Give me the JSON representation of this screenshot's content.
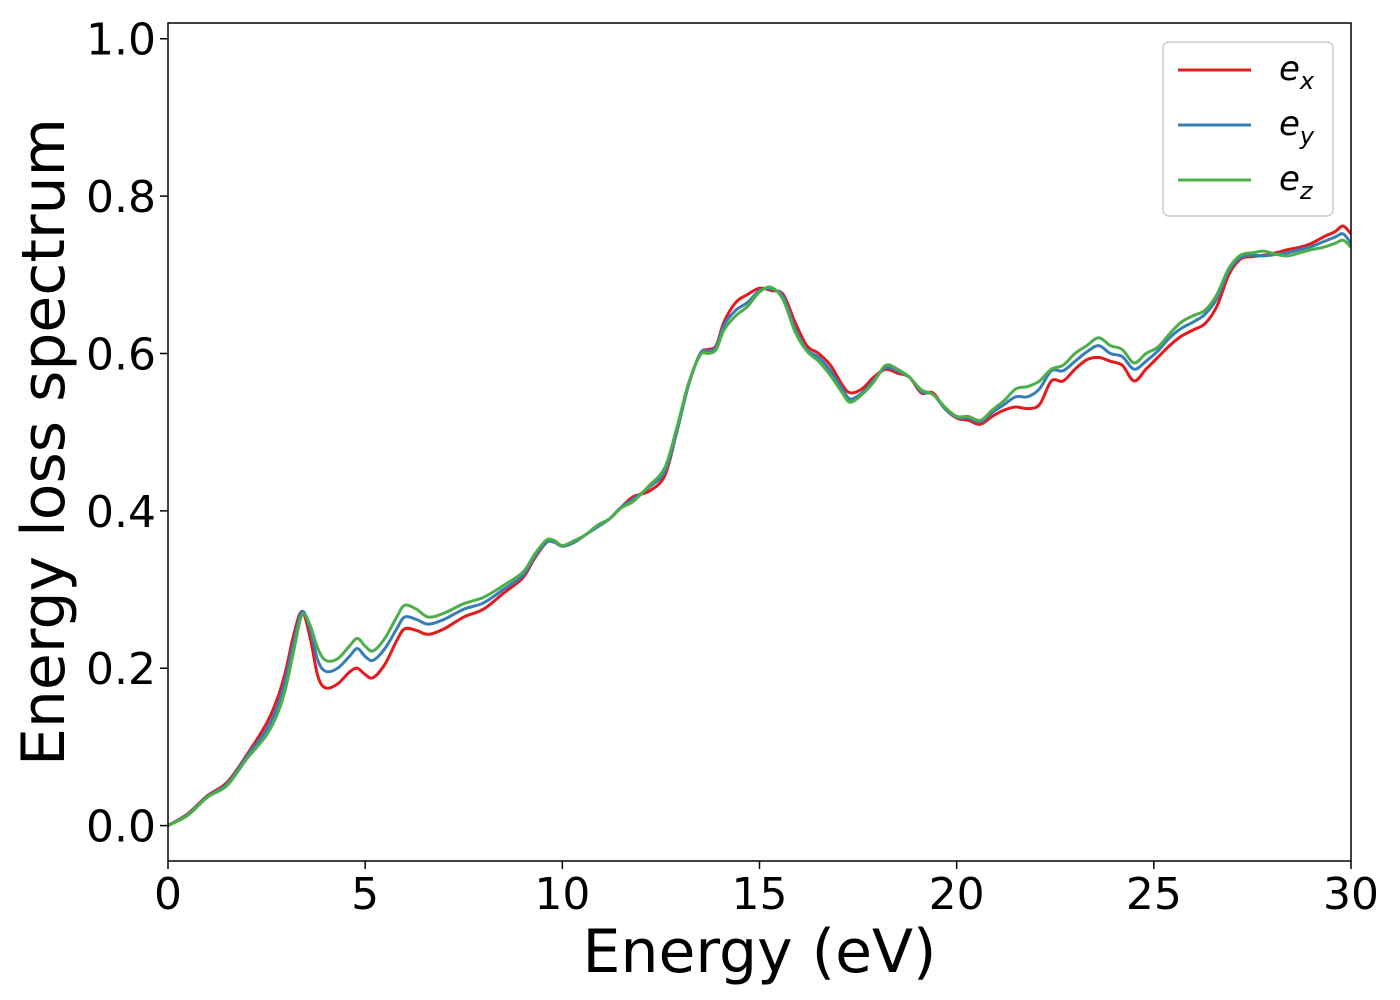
{
  "chart_data": {
    "type": "line",
    "title": "",
    "xlabel": "Energy (eV)",
    "ylabel": "Energy loss spectrum",
    "xlim": [
      0,
      30
    ],
    "ylim": [
      -0.045,
      1.02
    ],
    "xticks": [
      0,
      5,
      10,
      15,
      20,
      25,
      30
    ],
    "xtick_labels": [
      "0",
      "5",
      "10",
      "15",
      "20",
      "25",
      "30"
    ],
    "yticks": [
      0.0,
      0.2,
      0.4,
      0.6,
      0.8,
      1.0
    ],
    "ytick_labels": [
      "0.0",
      "0.2",
      "0.4",
      "0.6",
      "0.8",
      "1.0"
    ],
    "grid": false,
    "legend_position": "top-right",
    "series": [
      {
        "name": "e_x",
        "legend_base": "e",
        "legend_sub": "x",
        "color": "#e41a1c",
        "x": [
          0,
          0.5,
          1.0,
          1.5,
          2.0,
          2.5,
          2.8,
          3.0,
          3.2,
          3.4,
          3.6,
          3.8,
          4.0,
          4.3,
          4.6,
          4.8,
          5.0,
          5.2,
          5.5,
          5.8,
          6.0,
          6.3,
          6.6,
          7.0,
          7.5,
          8.0,
          8.5,
          9.0,
          9.3,
          9.6,
          9.8,
          10.0,
          10.3,
          10.6,
          10.9,
          11.2,
          11.5,
          11.8,
          12.2,
          12.6,
          12.9,
          13.2,
          13.5,
          13.7,
          13.9,
          14.1,
          14.4,
          14.7,
          15.0,
          15.3,
          15.6,
          15.9,
          16.2,
          16.5,
          16.8,
          17.1,
          17.3,
          17.6,
          17.9,
          18.2,
          18.5,
          18.8,
          19.1,
          19.4,
          19.7,
          20.0,
          20.3,
          20.6,
          20.9,
          21.2,
          21.5,
          21.8,
          22.1,
          22.4,
          22.7,
          23.0,
          23.3,
          23.6,
          23.9,
          24.2,
          24.5,
          24.8,
          25.1,
          25.4,
          25.7,
          26.0,
          26.3,
          26.6,
          26.9,
          27.2,
          27.5,
          27.8,
          28.1,
          28.4,
          28.7,
          29.0,
          29.3,
          29.6,
          29.8,
          30.0
        ],
        "y": [
          0.0,
          0.015,
          0.038,
          0.055,
          0.09,
          0.13,
          0.165,
          0.2,
          0.245,
          0.272,
          0.24,
          0.19,
          0.175,
          0.18,
          0.195,
          0.2,
          0.192,
          0.188,
          0.205,
          0.235,
          0.25,
          0.248,
          0.243,
          0.25,
          0.265,
          0.275,
          0.295,
          0.315,
          0.34,
          0.36,
          0.362,
          0.355,
          0.36,
          0.37,
          0.38,
          0.39,
          0.405,
          0.418,
          0.425,
          0.445,
          0.5,
          0.56,
          0.6,
          0.605,
          0.61,
          0.64,
          0.665,
          0.675,
          0.683,
          0.68,
          0.675,
          0.64,
          0.61,
          0.6,
          0.585,
          0.56,
          0.55,
          0.555,
          0.57,
          0.58,
          0.575,
          0.57,
          0.55,
          0.55,
          0.53,
          0.518,
          0.515,
          0.51,
          0.52,
          0.528,
          0.532,
          0.53,
          0.535,
          0.565,
          0.565,
          0.58,
          0.592,
          0.595,
          0.59,
          0.585,
          0.565,
          0.58,
          0.595,
          0.61,
          0.622,
          0.63,
          0.638,
          0.66,
          0.7,
          0.72,
          0.723,
          0.725,
          0.728,
          0.732,
          0.735,
          0.74,
          0.748,
          0.755,
          0.762,
          0.752
        ]
      },
      {
        "name": "e_y",
        "legend_base": "e",
        "legend_sub": "y",
        "color": "#377eb8",
        "x": [
          0,
          0.5,
          1.0,
          1.5,
          2.0,
          2.5,
          2.8,
          3.0,
          3.2,
          3.4,
          3.6,
          3.8,
          4.0,
          4.3,
          4.6,
          4.8,
          5.0,
          5.2,
          5.5,
          5.8,
          6.0,
          6.3,
          6.6,
          7.0,
          7.5,
          8.0,
          8.5,
          9.0,
          9.3,
          9.6,
          9.8,
          10.0,
          10.3,
          10.6,
          10.9,
          11.2,
          11.5,
          11.8,
          12.2,
          12.6,
          12.9,
          13.2,
          13.5,
          13.7,
          13.9,
          14.1,
          14.4,
          14.7,
          15.0,
          15.3,
          15.6,
          15.9,
          16.2,
          16.5,
          16.8,
          17.1,
          17.3,
          17.6,
          17.9,
          18.2,
          18.5,
          18.8,
          19.1,
          19.4,
          19.7,
          20.0,
          20.3,
          20.6,
          20.9,
          21.2,
          21.5,
          21.8,
          22.1,
          22.4,
          22.7,
          23.0,
          23.3,
          23.6,
          23.9,
          24.2,
          24.5,
          24.8,
          25.1,
          25.4,
          25.7,
          26.0,
          26.3,
          26.6,
          26.9,
          27.2,
          27.5,
          27.8,
          28.1,
          28.4,
          28.7,
          29.0,
          29.3,
          29.6,
          29.8,
          30.0
        ],
        "y": [
          0.0,
          0.014,
          0.037,
          0.053,
          0.088,
          0.122,
          0.155,
          0.19,
          0.235,
          0.272,
          0.25,
          0.21,
          0.196,
          0.2,
          0.215,
          0.225,
          0.215,
          0.21,
          0.225,
          0.25,
          0.265,
          0.262,
          0.256,
          0.262,
          0.275,
          0.283,
          0.3,
          0.318,
          0.342,
          0.36,
          0.36,
          0.355,
          0.36,
          0.37,
          0.38,
          0.39,
          0.405,
          0.415,
          0.43,
          0.45,
          0.5,
          0.56,
          0.6,
          0.603,
          0.608,
          0.636,
          0.655,
          0.665,
          0.68,
          0.682,
          0.672,
          0.632,
          0.605,
          0.595,
          0.578,
          0.555,
          0.542,
          0.55,
          0.566,
          0.582,
          0.578,
          0.57,
          0.552,
          0.548,
          0.53,
          0.519,
          0.518,
          0.513,
          0.525,
          0.535,
          0.545,
          0.545,
          0.555,
          0.578,
          0.578,
          0.59,
          0.602,
          0.61,
          0.6,
          0.596,
          0.58,
          0.59,
          0.603,
          0.62,
          0.632,
          0.64,
          0.65,
          0.67,
          0.705,
          0.722,
          0.725,
          0.724,
          0.726,
          0.728,
          0.732,
          0.736,
          0.742,
          0.748,
          0.752,
          0.74
        ]
      },
      {
        "name": "e_z",
        "legend_base": "e",
        "legend_sub": "z",
        "color": "#4daf4a",
        "x": [
          0,
          0.5,
          1.0,
          1.5,
          2.0,
          2.5,
          2.8,
          3.0,
          3.2,
          3.4,
          3.6,
          3.8,
          4.0,
          4.3,
          4.6,
          4.8,
          5.0,
          5.2,
          5.5,
          5.8,
          6.0,
          6.3,
          6.6,
          7.0,
          7.5,
          8.0,
          8.5,
          9.0,
          9.3,
          9.6,
          9.8,
          10.0,
          10.3,
          10.6,
          10.9,
          11.2,
          11.5,
          11.8,
          12.2,
          12.6,
          12.9,
          13.2,
          13.5,
          13.7,
          13.9,
          14.1,
          14.4,
          14.7,
          15.0,
          15.3,
          15.6,
          15.9,
          16.2,
          16.5,
          16.8,
          17.1,
          17.3,
          17.6,
          17.9,
          18.2,
          18.5,
          18.8,
          19.1,
          19.4,
          19.7,
          20.0,
          20.3,
          20.6,
          20.9,
          21.2,
          21.5,
          21.8,
          22.1,
          22.4,
          22.7,
          23.0,
          23.3,
          23.6,
          23.9,
          24.2,
          24.5,
          24.8,
          25.1,
          25.4,
          25.7,
          26.0,
          26.3,
          26.6,
          26.9,
          27.2,
          27.5,
          27.8,
          28.1,
          28.4,
          28.7,
          29.0,
          29.3,
          29.6,
          29.8,
          30.0
        ],
        "y": [
          0.0,
          0.013,
          0.036,
          0.051,
          0.085,
          0.115,
          0.145,
          0.178,
          0.225,
          0.268,
          0.255,
          0.225,
          0.21,
          0.212,
          0.228,
          0.238,
          0.228,
          0.222,
          0.238,
          0.265,
          0.28,
          0.275,
          0.265,
          0.27,
          0.282,
          0.29,
          0.305,
          0.322,
          0.345,
          0.363,
          0.362,
          0.356,
          0.362,
          0.37,
          0.382,
          0.39,
          0.404,
          0.412,
          0.432,
          0.455,
          0.505,
          0.562,
          0.598,
          0.6,
          0.605,
          0.63,
          0.648,
          0.66,
          0.678,
          0.684,
          0.668,
          0.628,
          0.603,
          0.59,
          0.572,
          0.55,
          0.538,
          0.548,
          0.564,
          0.585,
          0.58,
          0.57,
          0.554,
          0.548,
          0.532,
          0.52,
          0.52,
          0.515,
          0.528,
          0.54,
          0.555,
          0.558,
          0.565,
          0.58,
          0.585,
          0.6,
          0.61,
          0.62,
          0.61,
          0.605,
          0.588,
          0.6,
          0.608,
          0.625,
          0.64,
          0.648,
          0.655,
          0.675,
          0.708,
          0.725,
          0.728,
          0.73,
          0.726,
          0.724,
          0.728,
          0.732,
          0.735,
          0.74,
          0.744,
          0.735
        ]
      }
    ]
  }
}
